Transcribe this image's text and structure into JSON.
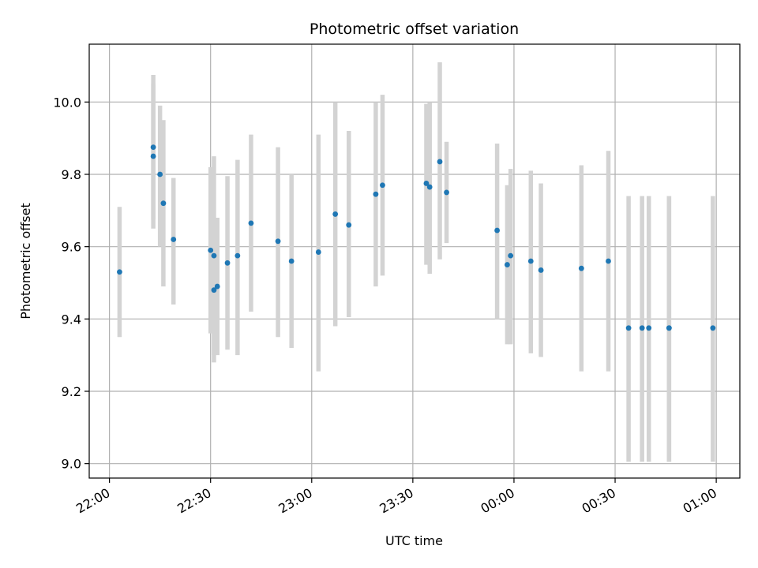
{
  "chart_data": {
    "type": "scatter",
    "title": "Photometric offset variation",
    "xlabel": "UTC time",
    "ylabel": "Photometric offset",
    "x_unit": "UTC time (HH:MM)",
    "xlim": [
      "21:54",
      "01:07"
    ],
    "ylim": [
      8.96,
      10.16
    ],
    "x_ticks": [
      "22:00",
      "22:30",
      "23:00",
      "23:30",
      "00:00",
      "00:30",
      "01:00"
    ],
    "y_ticks": [
      "9.0",
      "9.2",
      "9.4",
      "9.6",
      "9.8",
      "10.0"
    ],
    "y_tick_values": [
      9.0,
      9.2,
      9.4,
      9.6,
      9.8,
      10.0
    ],
    "grid": true,
    "point_color": "#1f77b4",
    "errorbar_color": "#d3d3d3",
    "points": [
      {
        "t": "22:03",
        "y": 9.53,
        "lo": 9.35,
        "hi": 9.71
      },
      {
        "t": "22:13",
        "y": 9.875,
        "lo": 9.675,
        "hi": 10.075
      },
      {
        "t": "22:13",
        "y": 9.85,
        "lo": 9.65,
        "hi": 10.05
      },
      {
        "t": "22:15",
        "y": 9.8,
        "lo": 9.6,
        "hi": 9.99
      },
      {
        "t": "22:16",
        "y": 9.72,
        "lo": 9.49,
        "hi": 9.95
      },
      {
        "t": "22:19",
        "y": 9.62,
        "lo": 9.44,
        "hi": 9.79
      },
      {
        "t": "22:30",
        "y": 9.59,
        "lo": 9.36,
        "hi": 9.82
      },
      {
        "t": "22:31",
        "y": 9.575,
        "lo": 9.3,
        "hi": 9.85
      },
      {
        "t": "22:31",
        "y": 9.48,
        "lo": 9.28,
        "hi": 9.68
      },
      {
        "t": "22:32",
        "y": 9.49,
        "lo": 9.3,
        "hi": 9.68
      },
      {
        "t": "22:35",
        "y": 9.555,
        "lo": 9.315,
        "hi": 9.795
      },
      {
        "t": "22:38",
        "y": 9.575,
        "lo": 9.3,
        "hi": 9.84
      },
      {
        "t": "22:42",
        "y": 9.665,
        "lo": 9.42,
        "hi": 9.91
      },
      {
        "t": "22:50",
        "y": 9.615,
        "lo": 9.35,
        "hi": 9.875
      },
      {
        "t": "22:54",
        "y": 9.56,
        "lo": 9.32,
        "hi": 9.8
      },
      {
        "t": "23:02",
        "y": 9.585,
        "lo": 9.255,
        "hi": 9.91
      },
      {
        "t": "23:07",
        "y": 9.69,
        "lo": 9.38,
        "hi": 10.0
      },
      {
        "t": "23:11",
        "y": 9.66,
        "lo": 9.405,
        "hi": 9.92
      },
      {
        "t": "23:19",
        "y": 9.745,
        "lo": 9.49,
        "hi": 10.0
      },
      {
        "t": "23:21",
        "y": 9.77,
        "lo": 9.52,
        "hi": 10.02
      },
      {
        "t": "23:34",
        "y": 9.775,
        "lo": 9.55,
        "hi": 9.995
      },
      {
        "t": "23:35",
        "y": 9.765,
        "lo": 9.525,
        "hi": 10.0
      },
      {
        "t": "23:38",
        "y": 9.835,
        "lo": 9.565,
        "hi": 10.11
      },
      {
        "t": "23:40",
        "y": 9.75,
        "lo": 9.61,
        "hi": 9.89
      },
      {
        "t": "23:55",
        "y": 9.645,
        "lo": 9.4,
        "hi": 9.885
      },
      {
        "t": "23:58",
        "y": 9.55,
        "lo": 9.33,
        "hi": 9.77
      },
      {
        "t": "23:59",
        "y": 9.575,
        "lo": 9.33,
        "hi": 9.815
      },
      {
        "t": "00:05",
        "y": 9.56,
        "lo": 9.305,
        "hi": 9.81
      },
      {
        "t": "00:08",
        "y": 9.535,
        "lo": 9.295,
        "hi": 9.775
      },
      {
        "t": "00:20",
        "y": 9.54,
        "lo": 9.255,
        "hi": 9.825
      },
      {
        "t": "00:28",
        "y": 9.56,
        "lo": 9.255,
        "hi": 9.865
      },
      {
        "t": "00:34",
        "y": 9.375,
        "lo": 9.005,
        "hi": 9.74
      },
      {
        "t": "00:38",
        "y": 9.375,
        "lo": 9.005,
        "hi": 9.74
      },
      {
        "t": "00:40",
        "y": 9.375,
        "lo": 9.005,
        "hi": 9.74
      },
      {
        "t": "00:46",
        "y": 9.375,
        "lo": 9.005,
        "hi": 9.74
      },
      {
        "t": "00:46",
        "y": 9.375,
        "lo": 9.005,
        "hi": 9.74
      },
      {
        "t": "00:59",
        "y": 9.375,
        "lo": 9.005,
        "hi": 9.74
      }
    ]
  }
}
